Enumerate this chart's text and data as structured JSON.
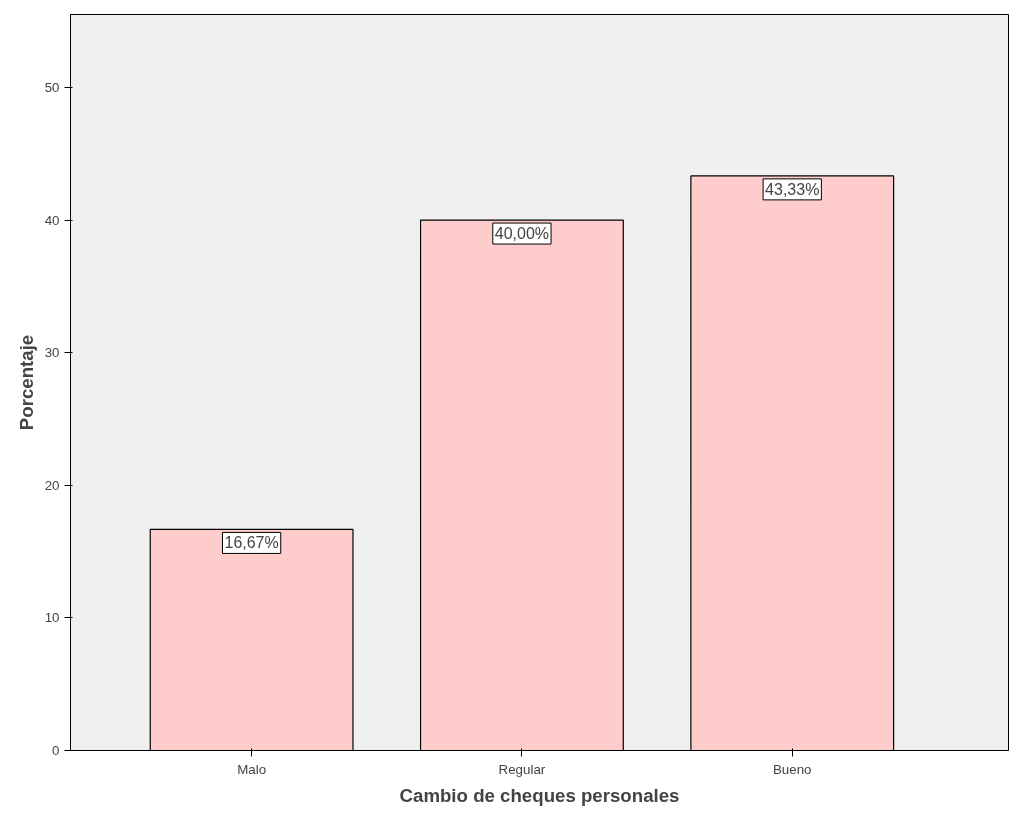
{
  "chart_data": {
    "type": "bar",
    "xlabel": "Cambio de cheques personales",
    "ylabel": "Porcentaje",
    "categories": [
      "Malo",
      "Regular",
      "Bueno"
    ],
    "values": [
      16.67,
      40.0,
      43.33
    ],
    "value_labels": [
      "16,67%",
      "40,00%",
      "43,33%"
    ],
    "color": "#ffcccc",
    "ylim": [
      0,
      55.5
    ],
    "yticks": [
      0,
      10,
      20,
      30,
      40,
      50
    ],
    "grid": false
  }
}
